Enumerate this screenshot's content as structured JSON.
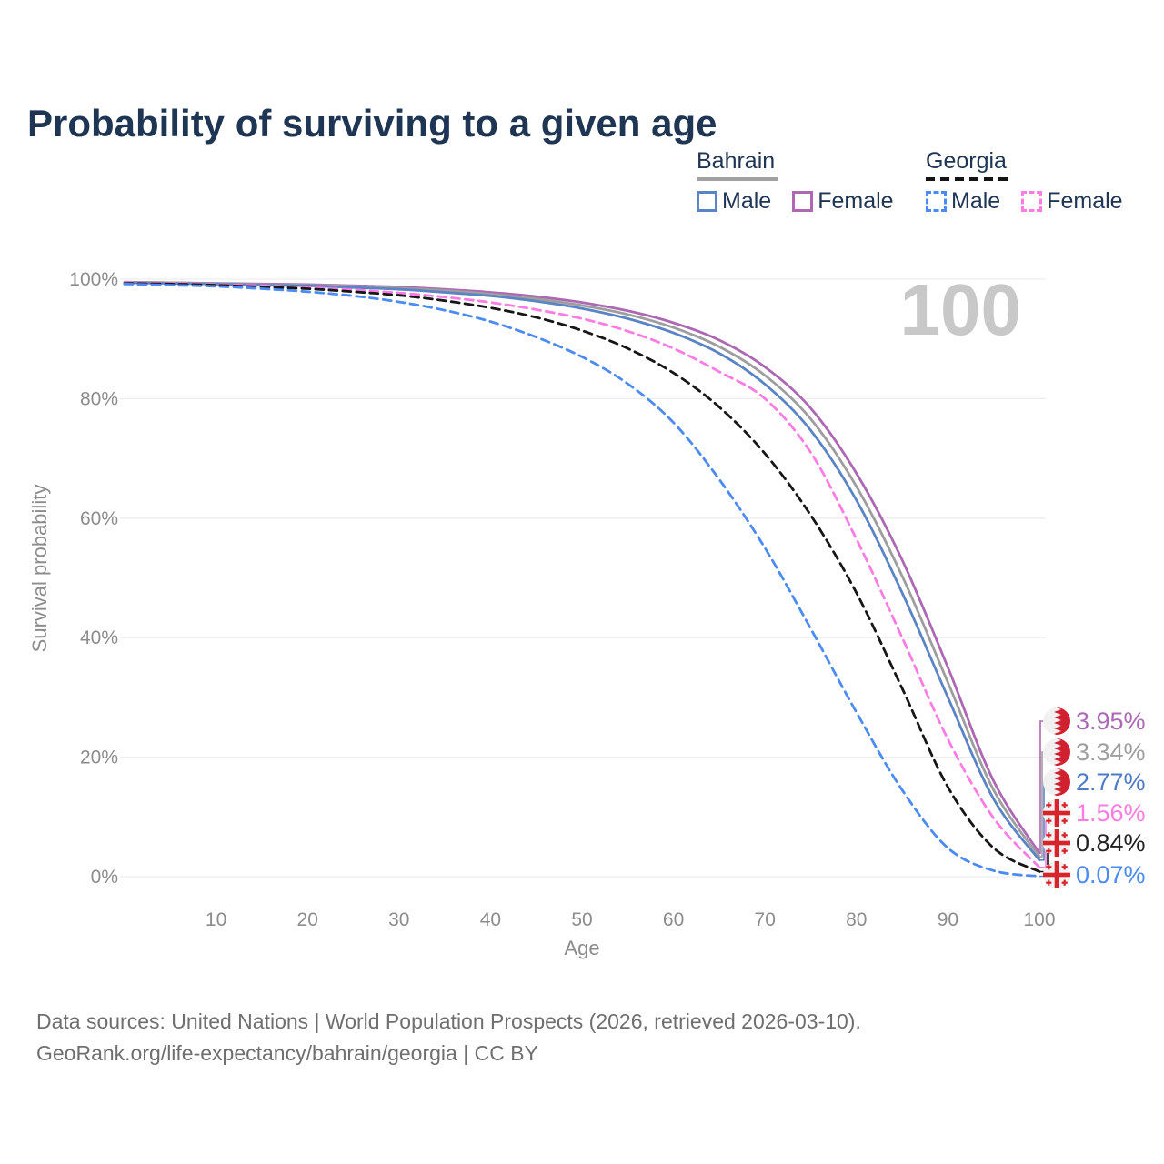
{
  "header": {
    "title": "Probability of surviving to a given age"
  },
  "legend": {
    "groups": [
      {
        "country": "Bahrain",
        "line_style": "solid",
        "underline_color": "#a0a0a0",
        "items": [
          {
            "label": "Male",
            "color": "#5b84c4"
          },
          {
            "label": "Female",
            "color": "#ad68b3"
          }
        ]
      },
      {
        "country": "Georgia",
        "line_style": "dashed",
        "underline_color": "#141414",
        "items": [
          {
            "label": "Male",
            "color": "#4b8bf2"
          },
          {
            "label": "Female",
            "color": "#fb7ce2"
          }
        ]
      }
    ]
  },
  "chart_data": {
    "type": "line",
    "title": "Probability of surviving to a given age",
    "xlabel": "Age",
    "ylabel": "Survival probability",
    "xlim": [
      0,
      100
    ],
    "ylim": [
      0,
      100
    ],
    "grid": true,
    "legend_position": "top-right",
    "watermark": "100",
    "x_ticks": [
      10,
      20,
      30,
      40,
      50,
      60,
      70,
      80,
      90,
      100
    ],
    "y_tick_values": [
      0,
      20,
      40,
      60,
      80,
      100
    ],
    "y_tick_labels": [
      "0%",
      "20%",
      "40%",
      "60%",
      "80%",
      "100%"
    ],
    "x": [
      0,
      5,
      10,
      15,
      20,
      25,
      30,
      35,
      40,
      45,
      50,
      55,
      60,
      65,
      70,
      75,
      80,
      85,
      90,
      95,
      100
    ],
    "series": [
      {
        "name": "Bahrain Female",
        "country": "Bahrain",
        "sex": "Female",
        "color": "#ad68b3",
        "line_style": "solid",
        "flag": "bahrain",
        "end_label": "3.95%",
        "label_color": "#ab68b5",
        "values": [
          99.5,
          99.4,
          99.3,
          99.2,
          99.1,
          98.9,
          98.7,
          98.3,
          97.8,
          97.1,
          96.1,
          94.7,
          92.7,
          89.8,
          85.3,
          78.4,
          67.5,
          53.0,
          35.0,
          16.0,
          3.95
        ]
      },
      {
        "name": "Bahrain Both sexes",
        "country": "Bahrain",
        "sex": "All",
        "color": "#9e9e9e",
        "line_style": "solid",
        "flag": "bahrain",
        "end_label": "3.34%",
        "label_color": "#9e9e9e",
        "values": [
          99.5,
          99.4,
          99.3,
          99.1,
          99.0,
          98.8,
          98.5,
          98.1,
          97.5,
          96.7,
          95.6,
          94.1,
          91.9,
          88.7,
          83.9,
          76.6,
          65.3,
          50.3,
          32.5,
          14.5,
          3.34
        ]
      },
      {
        "name": "Bahrain Male",
        "country": "Bahrain",
        "sex": "Male",
        "color": "#5b84c4",
        "line_style": "solid",
        "flag": "bahrain",
        "end_label": "2.77%",
        "label_color": "#4e7bc7",
        "values": [
          99.4,
          99.3,
          99.2,
          99.0,
          98.9,
          98.6,
          98.3,
          97.8,
          97.2,
          96.3,
          95.1,
          93.4,
          91.0,
          87.6,
          82.4,
          74.7,
          63.0,
          47.5,
          30.0,
          13.0,
          2.77
        ]
      },
      {
        "name": "Georgia Female",
        "country": "Georgia",
        "sex": "Female",
        "color": "#fb7ce2",
        "line_style": "dashed",
        "flag": "georgia",
        "end_label": "1.56%",
        "label_color": "#fb7ce2",
        "values": [
          99.4,
          99.3,
          99.1,
          98.9,
          98.6,
          98.2,
          97.7,
          97.0,
          96.1,
          94.9,
          93.4,
          91.3,
          88.4,
          84.5,
          80.0,
          71.0,
          56.5,
          40.0,
          23.0,
          9.8,
          1.56
        ]
      },
      {
        "name": "Georgia Both sexes",
        "country": "Georgia",
        "sex": "All",
        "color": "#161616",
        "line_style": "dashed",
        "flag": "georgia",
        "end_label": "0.84%",
        "label_color": "#222222",
        "values": [
          99.3,
          99.2,
          99.0,
          98.7,
          98.4,
          97.9,
          97.3,
          96.4,
          95.2,
          93.6,
          91.4,
          88.4,
          84.3,
          78.6,
          70.8,
          60.5,
          47.5,
          31.5,
          15.0,
          4.8,
          0.84
        ]
      },
      {
        "name": "Georgia Male",
        "country": "Georgia",
        "sex": "Male",
        "color": "#4b8bf2",
        "line_style": "dashed",
        "flag": "georgia",
        "end_label": "0.07%",
        "label_color": "#4b8bf2",
        "values": [
          99.2,
          99.0,
          98.8,
          98.4,
          97.9,
          97.2,
          96.2,
          94.8,
          92.9,
          90.3,
          87.0,
          82.5,
          76.0,
          66.5,
          55.0,
          41.5,
          27.5,
          14.5,
          4.8,
          1.0,
          0.07
        ]
      }
    ],
    "flag_colors": {
      "bahrain_red": "#d1202f",
      "georgia_red": "#d8232a",
      "flag_bg": "#f1f1f1"
    }
  },
  "footer": {
    "line1": "Data sources: United Nations | World Population Prospects (2026, retrieved 2026-03-10).",
    "line2": "GeoRank.org/life-expectancy/bahrain/georgia | CC BY"
  }
}
